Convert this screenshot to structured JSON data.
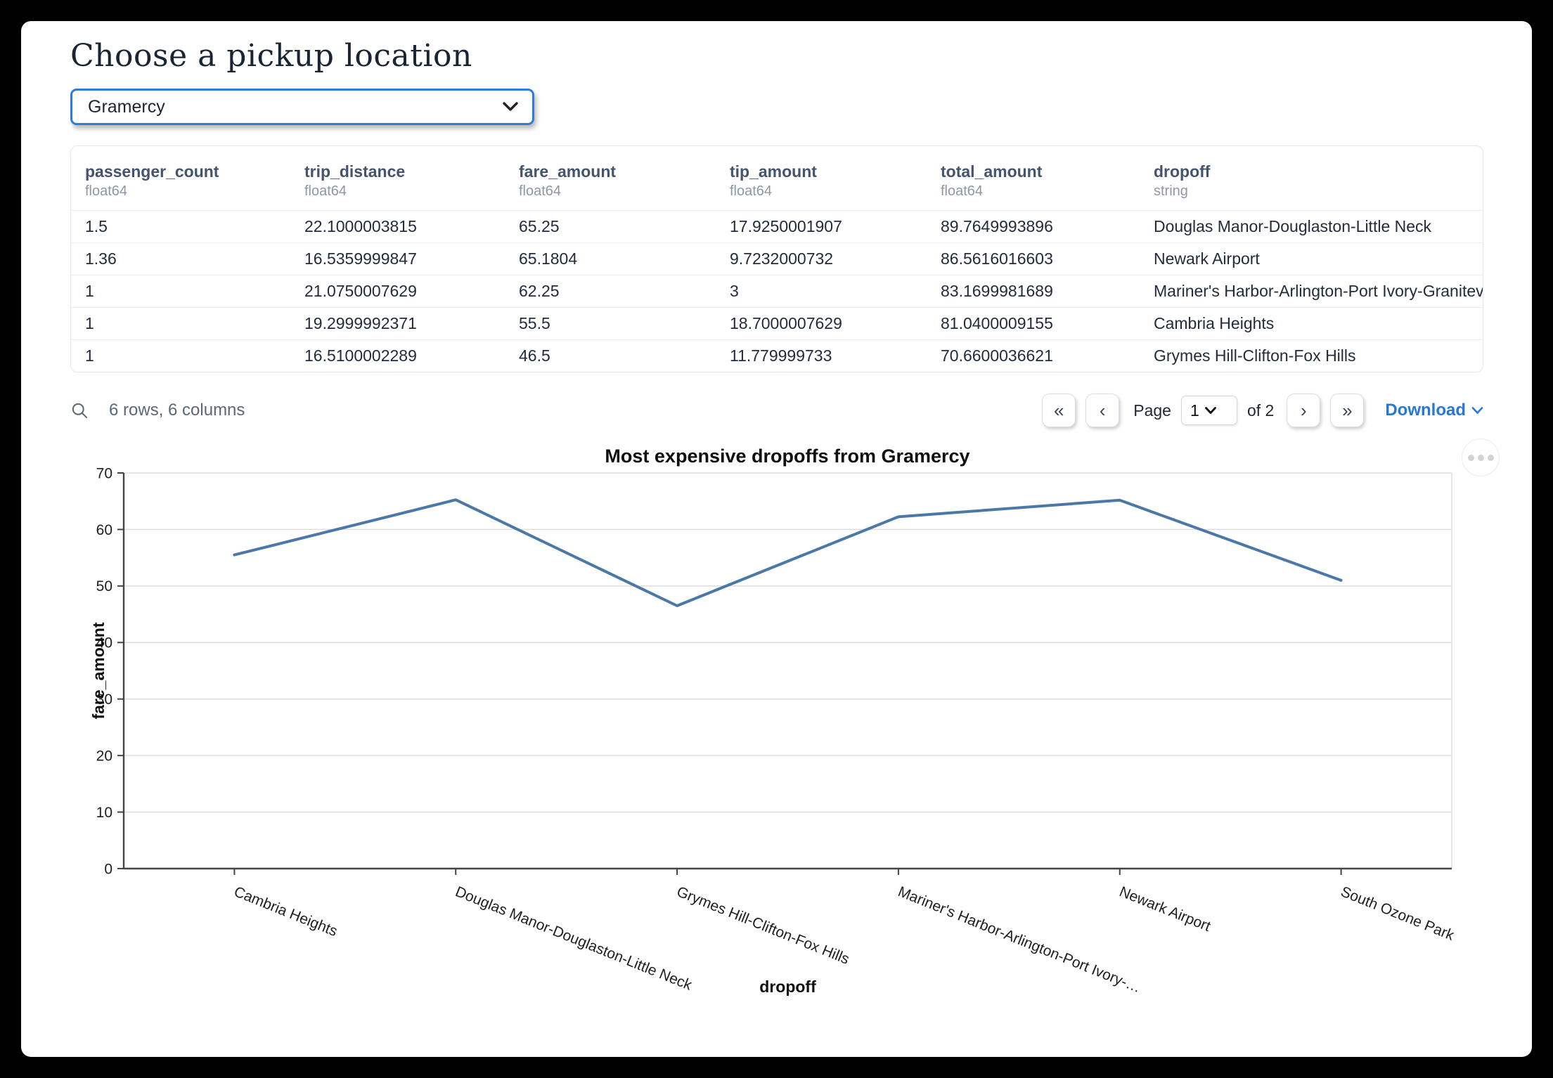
{
  "page": {
    "title": "Choose a pickup location"
  },
  "pickup_select": {
    "value": "Gramercy",
    "icon": "chevron-down-icon"
  },
  "table": {
    "columns": [
      {
        "name": "passenger_count",
        "type": "float64"
      },
      {
        "name": "trip_distance",
        "type": "float64"
      },
      {
        "name": "fare_amount",
        "type": "float64"
      },
      {
        "name": "tip_amount",
        "type": "float64"
      },
      {
        "name": "total_amount",
        "type": "float64"
      },
      {
        "name": "dropoff",
        "type": "string"
      }
    ],
    "rows": [
      [
        "1.5",
        "22.1000003815",
        "65.25",
        "17.9250001907",
        "89.7649993896",
        "Douglas Manor-Douglaston-Little Neck"
      ],
      [
        "1.36",
        "16.5359999847",
        "65.1804",
        "9.7232000732",
        "86.5616016603",
        "Newark Airport"
      ],
      [
        "1",
        "21.0750007629",
        "62.25",
        "3",
        "83.1699981689",
        "Mariner's Harbor-Arlington-Port Ivory-Graniteville"
      ],
      [
        "1",
        "19.2999992371",
        "55.5",
        "18.7000007629",
        "81.0400009155",
        "Cambria Heights"
      ],
      [
        "1",
        "16.5100002289",
        "46.5",
        "11.779999733",
        "70.6600036621",
        "Grymes Hill-Clifton-Fox Hills"
      ]
    ],
    "summary": "6 rows, 6 columns",
    "pagination": {
      "first": "«",
      "prev": "‹",
      "next": "›",
      "last": "»",
      "page_label": "Page",
      "current_page": "1",
      "of_label": "of 2"
    },
    "download_label": "Download"
  },
  "chart_data": {
    "type": "line",
    "title": "Most expensive dropoffs from Gramercy",
    "xlabel": "dropoff",
    "ylabel": "fare_amount",
    "ylim": [
      0,
      70
    ],
    "yticks": [
      0,
      10,
      20,
      30,
      40,
      50,
      60,
      70
    ],
    "grid": true,
    "legend": "none",
    "categories": [
      "Cambria Heights",
      "Douglas Manor-Douglaston-Little Neck",
      "Grymes Hill-Clifton-Fox Hills",
      "Mariner's Harbor-Arlington-Port Ivory-…",
      "Newark Airport",
      "South Ozone Park"
    ],
    "values": [
      55.5,
      65.25,
      46.5,
      62.25,
      65.1804,
      51
    ],
    "x_label_angle_deg": 22,
    "line_color": "#4c78a8",
    "grid_color": "#dddddd",
    "axis_color": "#444444"
  }
}
